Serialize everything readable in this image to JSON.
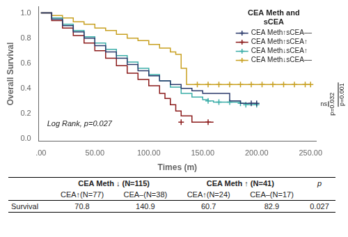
{
  "chart_data": {
    "type": "line",
    "title": "CEA Meth and\nsCEA",
    "xlabel": "Times (m)",
    "ylabel": "Overall Survival",
    "xlim": [
      -2,
      255
    ],
    "ylim": [
      -0.02,
      1.05
    ],
    "xticks": [
      {
        "value": 0,
        "label": ".00"
      },
      {
        "value": 50,
        "label": "50.00"
      },
      {
        "value": 100,
        "label": "100.00"
      },
      {
        "value": 150,
        "label": "150.00"
      },
      {
        "value": 200,
        "label": "200.00"
      },
      {
        "value": 250,
        "label": "250.00"
      }
    ],
    "yticks": [
      {
        "value": 0,
        "label": "0.0"
      },
      0.2,
      0.4,
      0.6,
      0.8,
      {
        "value": 1,
        "label": "1.0"
      }
    ],
    "grid": false,
    "legend": "upper right",
    "line_style": "steps",
    "marker": "+",
    "annotations": [
      "Log Rank, p=0.027"
    ],
    "brackets": [
      {
        "from": 0.28,
        "to": 0.27,
        "label": "p=0.032",
        "note": "ns"
      },
      {
        "from": 0.27,
        "to": 0.43,
        "label": "p=0.001"
      }
    ],
    "series": [
      {
        "name": "CEA Meth↑sCEA––",
        "color": "#2b3a6b",
        "x": [
          0,
          10,
          20,
          30,
          40,
          50,
          60,
          70,
          80,
          90,
          100,
          110,
          120,
          130,
          140,
          150,
          155,
          165,
          175,
          185,
          195,
          200
        ],
        "values": [
          1.0,
          0.95,
          0.9,
          0.85,
          0.8,
          0.74,
          0.69,
          0.64,
          0.59,
          0.54,
          0.5,
          0.46,
          0.43,
          0.4,
          0.38,
          0.36,
          0.36,
          0.36,
          0.3,
          0.28,
          0.28,
          0.28
        ],
        "censors": [
          [
            195,
            0.28
          ],
          [
            200,
            0.28
          ]
        ]
      },
      {
        "name": "CEA Meth↑sCEA↑",
        "color": "#8b1a1a",
        "x": [
          0,
          10,
          20,
          30,
          40,
          50,
          60,
          70,
          80,
          90,
          100,
          110,
          115,
          120,
          125,
          130,
          140,
          155,
          160
        ],
        "values": [
          1.0,
          0.94,
          0.88,
          0.82,
          0.76,
          0.7,
          0.64,
          0.58,
          0.52,
          0.47,
          0.42,
          0.36,
          0.32,
          0.27,
          0.22,
          0.18,
          0.13,
          0.13,
          0.13
        ],
        "censors": [
          [
            130,
            0.13
          ],
          [
            155,
            0.13
          ]
        ]
      },
      {
        "name": "CEA Meth↓sCEA↑",
        "color": "#3aada8",
        "x": [
          0,
          10,
          20,
          30,
          40,
          50,
          60,
          70,
          80,
          90,
          100,
          110,
          120,
          130,
          140,
          150,
          155,
          160,
          170,
          185,
          190,
          200
        ],
        "values": [
          1.0,
          0.96,
          0.91,
          0.86,
          0.81,
          0.76,
          0.71,
          0.66,
          0.61,
          0.56,
          0.51,
          0.46,
          0.41,
          0.36,
          0.33,
          0.31,
          0.3,
          0.29,
          0.29,
          0.28,
          0.27,
          0.27
        ],
        "censors": [
          [
            155,
            0.3
          ],
          [
            165,
            0.29
          ],
          [
            175,
            0.29
          ],
          [
            185,
            0.28
          ],
          [
            190,
            0.27
          ],
          [
            200,
            0.27
          ]
        ]
      },
      {
        "name": "CEA Meth↓sCEA––",
        "color": "#c8a020",
        "x": [
          0,
          10,
          20,
          30,
          40,
          50,
          60,
          70,
          80,
          90,
          100,
          110,
          120,
          125,
          130,
          135,
          145,
          155,
          165,
          175,
          185,
          195,
          205,
          215,
          225,
          235,
          245,
          250
        ],
        "values": [
          1.0,
          0.98,
          0.96,
          0.93,
          0.91,
          0.88,
          0.86,
          0.83,
          0.8,
          0.78,
          0.75,
          0.72,
          0.69,
          0.67,
          0.56,
          0.43,
          0.43,
          0.43,
          0.43,
          0.43,
          0.43,
          0.43,
          0.43,
          0.43,
          0.43,
          0.43,
          0.43,
          0.43
        ],
        "censors": [
          [
            145,
            0.43
          ],
          [
            155,
            0.43
          ],
          [
            165,
            0.43
          ],
          [
            175,
            0.43
          ],
          [
            185,
            0.43
          ],
          [
            195,
            0.43
          ],
          [
            205,
            0.43
          ],
          [
            215,
            0.43
          ],
          [
            225,
            0.43
          ],
          [
            235,
            0.43
          ],
          [
            245,
            0.43
          ],
          [
            250,
            0.43
          ]
        ]
      }
    ],
    "table": {
      "group_headers": [
        "CEA Meth ↓ (N=115)",
        "CEA Meth ↑ (N=41)"
      ],
      "p_header": "p",
      "columns": [
        "CEA↑(N=77)",
        "CEA–(N=38)",
        "CEA↑(N=24)",
        "CEA–(N=17)"
      ],
      "rows": [
        {
          "label": "Survival",
          "values": [
            70.8,
            140.9,
            60.7,
            82.9
          ],
          "p": 0.027
        }
      ]
    }
  }
}
